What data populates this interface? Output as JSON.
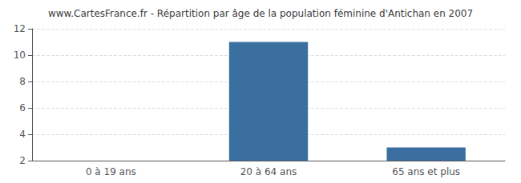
{
  "chart_data": {
    "type": "bar",
    "title": "www.CartesFrance.fr - Répartition par âge de la population féminine d'Antichan en 2007",
    "categories": [
      "0 à 19 ans",
      "20 à 64 ans",
      "65 ans et plus"
    ],
    "values": [
      2,
      11,
      3
    ],
    "color": "#3a6f9f",
    "ylim": [
      2,
      12
    ],
    "yticks": [
      2,
      4,
      6,
      8,
      10,
      12
    ],
    "grid": true
  }
}
